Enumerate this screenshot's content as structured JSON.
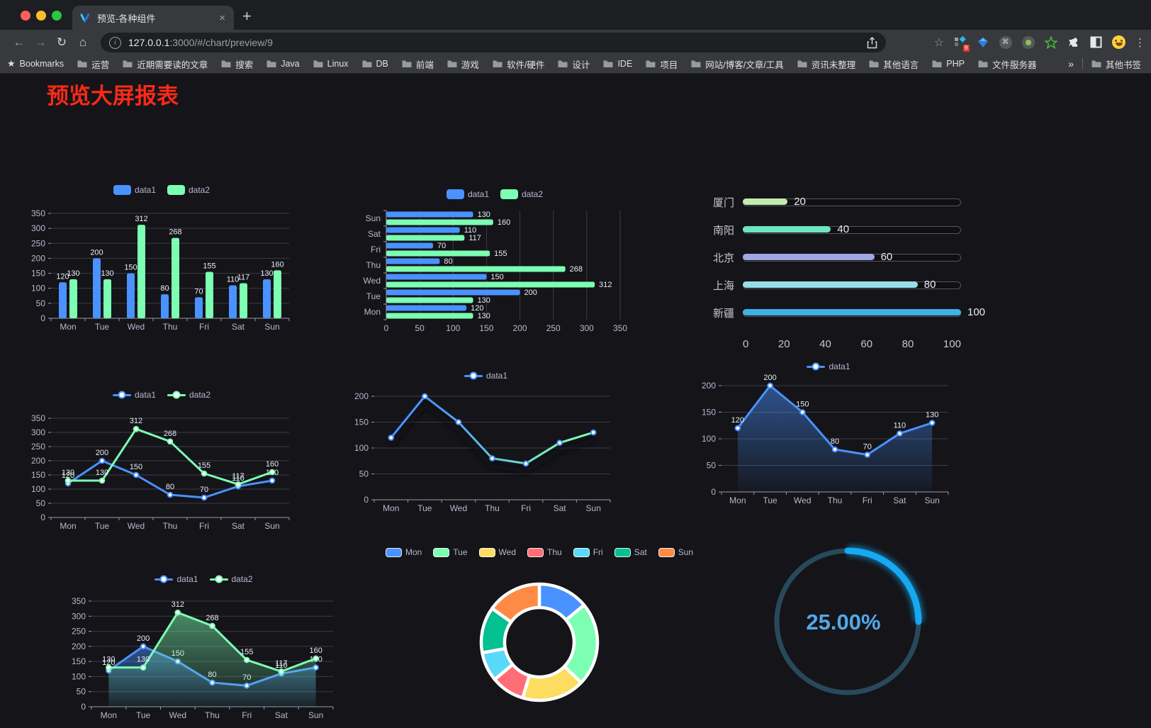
{
  "browser": {
    "window_buttons": {
      "close_color": "#ff5f57",
      "minimize_color": "#febc2e",
      "zoom_color": "#28c840"
    },
    "tab_title": "预览-各种组件",
    "tab_close_glyph": "×",
    "new_tab_glyph": "+",
    "back_glyph": "←",
    "forward_glyph": "→",
    "reload_glyph": "↻",
    "home_glyph": "⌂",
    "info_glyph": "i",
    "url_host": "127.0.0.1",
    "url_path": ":3000/#/chart/preview/9",
    "star_glyph": "☆",
    "cmd_glyph": "⌘",
    "menu_glyph": "⋮",
    "extension_badge": "9",
    "bookmarks_label": "Bookmarks",
    "bookmarks_star_glyph": "★",
    "bookmarks": [
      "运营",
      "近期需要读的文章",
      "搜索",
      "Java",
      "Linux",
      "DB",
      "前端",
      "游戏",
      "软件/硬件",
      "设计",
      "IDE",
      "项目",
      "网站/博客/文章/工具",
      "资讯未整理",
      "其他语言",
      "PHP",
      "文件服务器"
    ],
    "bookmarks_overflow_glyph": "»",
    "other_bookmarks_label": "其他书签"
  },
  "page": {
    "title": "预览大屏报表",
    "title_color": "#fa2a16",
    "background": "#141419"
  },
  "theme": {
    "axis_label_color": "#b9b8ce",
    "grid_line_color": "#3b3b46",
    "axis_line_color": "#9a9aa8",
    "value_label_color": "#e9edf4"
  },
  "chart_data": [
    {
      "id": "bar-grouped",
      "type": "bar",
      "legend_position": "top",
      "grid": true,
      "value_labels": true,
      "categories": [
        "Mon",
        "Tue",
        "Wed",
        "Thu",
        "Fri",
        "Sat",
        "Sun"
      ],
      "series": [
        {
          "name": "data1",
          "color": "#4992ff",
          "values": [
            120,
            200,
            150,
            80,
            70,
            110,
            130
          ]
        },
        {
          "name": "data2",
          "color": "#7cffb2",
          "values": [
            130,
            130,
            312,
            268,
            155,
            117,
            160
          ]
        }
      ],
      "ylim": [
        0,
        350
      ],
      "yticks": [
        0,
        50,
        100,
        150,
        200,
        250,
        300,
        350
      ]
    },
    {
      "id": "bar-horizontal",
      "type": "hbar",
      "legend_position": "top",
      "grid": true,
      "value_labels": true,
      "categories": [
        "Mon",
        "Tue",
        "Wed",
        "Thu",
        "Fri",
        "Sat",
        "Sun"
      ],
      "categories_display_order": "Sun-at-top",
      "series": [
        {
          "name": "data1",
          "color": "#4992ff",
          "values": [
            120,
            200,
            150,
            80,
            70,
            110,
            130
          ]
        },
        {
          "name": "data2",
          "color": "#7cffb2",
          "values": [
            130,
            130,
            312,
            268,
            155,
            117,
            160
          ]
        }
      ],
      "xlim": [
        0,
        350
      ],
      "xticks": [
        0,
        50,
        100,
        150,
        200,
        250,
        300,
        350
      ]
    },
    {
      "id": "progress-bars",
      "type": "bar",
      "subtype": "progress-list",
      "max": 100,
      "items": [
        {
          "label": "厦门",
          "value": 20,
          "color": "#c4ebad"
        },
        {
          "label": "南阳",
          "value": 40,
          "color": "#6be6c1"
        },
        {
          "label": "北京",
          "value": 60,
          "color": "#a0a7e6"
        },
        {
          "label": "上海",
          "value": 80,
          "color": "#96dee8"
        },
        {
          "label": "新疆",
          "value": 100,
          "color": "#3fb1e3"
        }
      ],
      "xticks": [
        0,
        20,
        40,
        60,
        80,
        100
      ]
    },
    {
      "id": "line-dual",
      "type": "line",
      "legend_position": "top",
      "grid": true,
      "value_labels": true,
      "categories": [
        "Mon",
        "Tue",
        "Wed",
        "Thu",
        "Fri",
        "Sat",
        "Sun"
      ],
      "series": [
        {
          "name": "data1",
          "color": "#4992ff",
          "values": [
            120,
            200,
            150,
            80,
            70,
            110,
            130
          ]
        },
        {
          "name": "data2",
          "color": "#7cffb2",
          "values": [
            130,
            130,
            312,
            268,
            155,
            117,
            160
          ]
        }
      ],
      "ylim": [
        0,
        350
      ],
      "yticks": [
        0,
        50,
        100,
        150,
        200,
        250,
        300,
        350
      ]
    },
    {
      "id": "line-gradient",
      "type": "line",
      "legend_position": "top",
      "grid": true,
      "value_labels": false,
      "gradient_stroke": [
        "#4992ff",
        "#7cffb2"
      ],
      "shadow": true,
      "categories": [
        "Mon",
        "Tue",
        "Wed",
        "Thu",
        "Fri",
        "Sat",
        "Sun"
      ],
      "series": [
        {
          "name": "data1",
          "color": "#4992ff",
          "values": [
            120,
            200,
            150,
            80,
            70,
            110,
            130
          ]
        }
      ],
      "ylim": [
        0,
        200
      ],
      "yticks": [
        0,
        50,
        100,
        150,
        200
      ]
    },
    {
      "id": "line-area",
      "type": "area",
      "legend_position": "top",
      "grid": true,
      "value_labels": true,
      "categories": [
        "Mon",
        "Tue",
        "Wed",
        "Thu",
        "Fri",
        "Sat",
        "Sun"
      ],
      "series": [
        {
          "name": "data1",
          "color": "#4992ff",
          "values": [
            120,
            200,
            150,
            80,
            70,
            110,
            130
          ],
          "area": true
        }
      ],
      "ylim": [
        0,
        200
      ],
      "yticks": [
        0,
        50,
        100,
        150,
        200
      ]
    },
    {
      "id": "line-area-dual",
      "type": "area",
      "legend_position": "top",
      "grid": true,
      "value_labels": true,
      "categories": [
        "Mon",
        "Tue",
        "Wed",
        "Thu",
        "Fri",
        "Sat",
        "Sun"
      ],
      "series": [
        {
          "name": "data1",
          "color": "#4992ff",
          "values": [
            120,
            200,
            150,
            80,
            70,
            110,
            130
          ],
          "area": true
        },
        {
          "name": "data2",
          "color": "#7cffb2",
          "values": [
            130,
            130,
            312,
            268,
            155,
            117,
            160
          ],
          "area": true
        }
      ],
      "ylim": [
        0,
        350
      ],
      "yticks": [
        0,
        50,
        100,
        150,
        200,
        250,
        300,
        350
      ]
    },
    {
      "id": "donut",
      "type": "pie",
      "legend_position": "top",
      "inner_radius_ratio": 0.6,
      "border_color": "#ffffff",
      "values": [
        {
          "label": "Mon",
          "value": 120,
          "color": "#4992ff"
        },
        {
          "label": "Tue",
          "value": 200,
          "color": "#7cffb2"
        },
        {
          "label": "Wed",
          "value": 150,
          "color": "#fddd60"
        },
        {
          "label": "Thu",
          "value": 80,
          "color": "#ff6e76"
        },
        {
          "label": "Fri",
          "value": 70,
          "color": "#58d9f9"
        },
        {
          "label": "Sat",
          "value": 110,
          "color": "#05c091"
        },
        {
          "label": "Sun",
          "value": 130,
          "color": "#ff8a45"
        }
      ]
    },
    {
      "id": "gauge",
      "type": "pie",
      "subtype": "ring-progress",
      "percent": 25,
      "value_label": "25.00%",
      "progress_color": "#17a8f2",
      "track_color": "#28495a",
      "text_color": "#53a8e8"
    }
  ]
}
